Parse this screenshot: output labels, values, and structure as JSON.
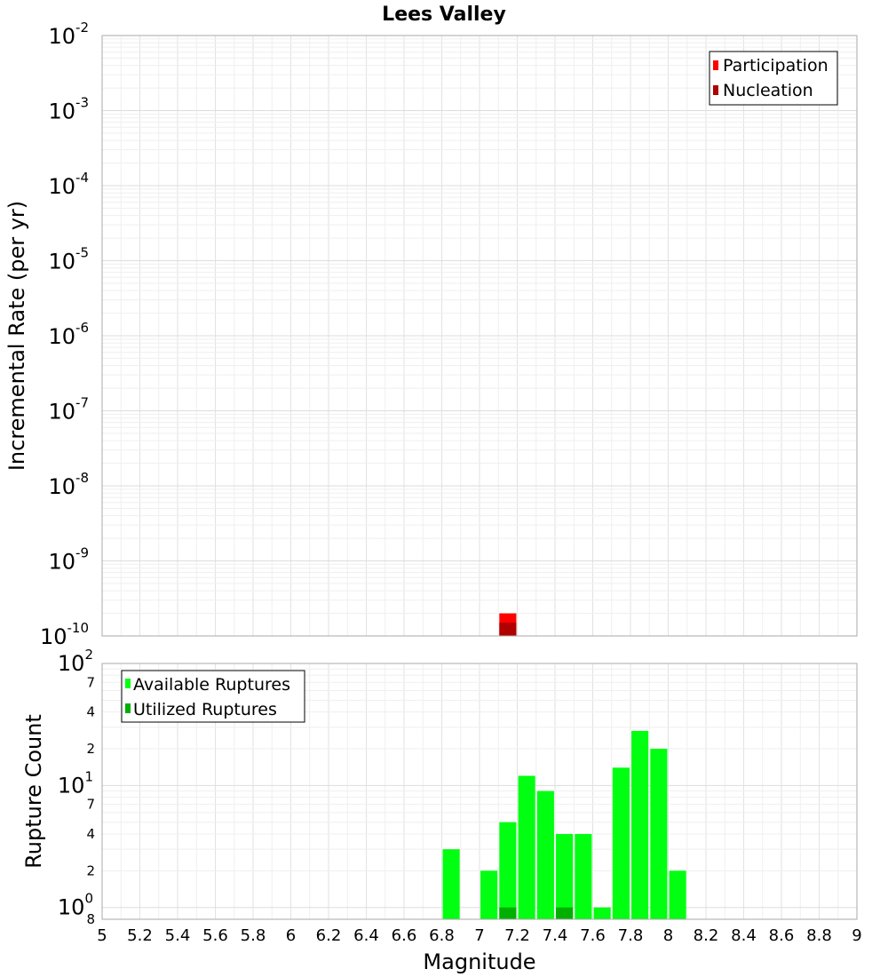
{
  "chart_data": [
    {
      "type": "bar",
      "title": "Lees Valley",
      "xlabel": "",
      "ylabel": "Incremental Rate (per yr)",
      "yscale": "log",
      "xlim": [
        5,
        9
      ],
      "ylim": [
        1e-10,
        0.01
      ],
      "y_ticks": [
        {
          "base": "10",
          "exp": "-2"
        },
        {
          "base": "10",
          "exp": "-3"
        },
        {
          "base": "10",
          "exp": "-4"
        },
        {
          "base": "10",
          "exp": "-5"
        },
        {
          "base": "10",
          "exp": "-6"
        },
        {
          "base": "10",
          "exp": "-7"
        },
        {
          "base": "10",
          "exp": "-8"
        },
        {
          "base": "10",
          "exp": "-9"
        },
        {
          "base": "10",
          "exp": "-10"
        }
      ],
      "grid": true,
      "legend_position": "top-right",
      "series": [
        {
          "name": "Participation",
          "color": "#ff0000",
          "x": [
            7.15
          ],
          "values": [
            2e-10
          ]
        },
        {
          "name": "Nucleation",
          "color": "#b00000",
          "x": [
            7.15
          ],
          "values": [
            1.5e-10
          ]
        }
      ]
    },
    {
      "type": "bar",
      "title": "",
      "xlabel": "Magnitude",
      "ylabel": "Rupture Count",
      "yscale": "log",
      "xlim": [
        5,
        9
      ],
      "ylim": [
        0.8,
        100
      ],
      "x_ticks": [
        "5",
        "5.2",
        "5.4",
        "5.6",
        "5.8",
        "6",
        "6.2",
        "6.4",
        "6.6",
        "6.8",
        "7",
        "7.2",
        "7.4",
        "7.6",
        "7.8",
        "8",
        "8.2",
        "8.4",
        "8.6",
        "8.8",
        "9"
      ],
      "y_ticks": [
        {
          "base": "10",
          "exp": "2"
        },
        {
          "base": "10",
          "exp": "1"
        },
        {
          "base": "10",
          "exp": "0"
        }
      ],
      "y_minor_ticks": [
        "7",
        "4",
        "2",
        "7",
        "4",
        "2",
        "8"
      ],
      "grid": true,
      "legend_position": "top-left",
      "series": [
        {
          "name": "Available Ruptures",
          "color": "#00ff10",
          "x": [
            6.85,
            7.05,
            7.15,
            7.25,
            7.35,
            7.45,
            7.55,
            7.65,
            7.75,
            7.85,
            7.95,
            8.05
          ],
          "values": [
            3,
            2,
            5,
            12,
            9,
            4,
            4,
            1,
            14,
            28,
            20,
            2
          ]
        },
        {
          "name": "Utilized Ruptures",
          "color": "#00b000",
          "x": [
            7.15,
            7.45
          ],
          "values": [
            1,
            1
          ]
        }
      ]
    }
  ]
}
